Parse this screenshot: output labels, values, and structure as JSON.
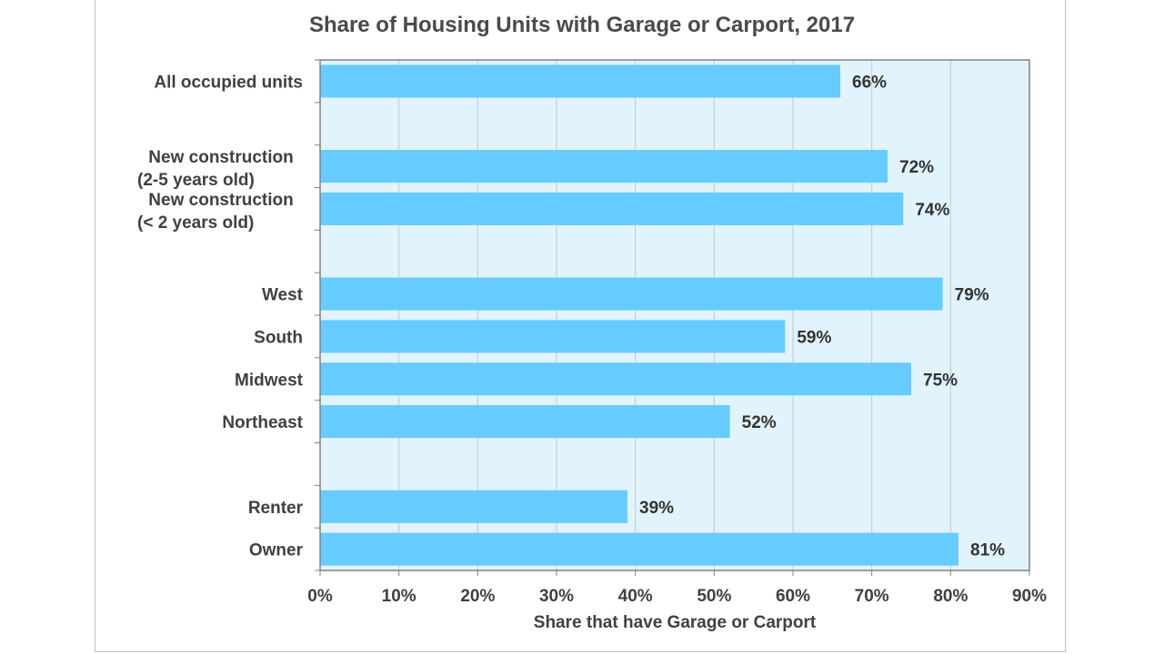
{
  "chart_data": {
    "type": "bar",
    "orientation": "horizontal",
    "title": "Share of Housing Units with Garage or Carport, 2017",
    "xlabel": "Share that have Garage or Carport",
    "ylabel": "",
    "xlim": [
      0,
      90
    ],
    "x_ticks": [
      "0%",
      "10%",
      "20%",
      "30%",
      "40%",
      "50%",
      "60%",
      "70%",
      "80%",
      "90%"
    ],
    "grid": true,
    "colors": {
      "bar": "#66ccff",
      "plot_bg": "#e1f3fc",
      "grid": "#c8c8c8",
      "axis": "#808080"
    },
    "categories": [
      {
        "lines": [
          "All occupied units"
        ],
        "value": 66,
        "label": "66%"
      },
      {
        "lines": [],
        "value": null,
        "label": ""
      },
      {
        "lines": [
          "New construction",
          "(2-5 years old)"
        ],
        "value": 72,
        "label": "72%"
      },
      {
        "lines": [
          "New construction",
          "(< 2 years old)"
        ],
        "value": 74,
        "label": "74%"
      },
      {
        "lines": [],
        "value": null,
        "label": ""
      },
      {
        "lines": [
          "West"
        ],
        "value": 79,
        "label": "79%"
      },
      {
        "lines": [
          "South"
        ],
        "value": 59,
        "label": "59%"
      },
      {
        "lines": [
          "Midwest"
        ],
        "value": 75,
        "label": "75%"
      },
      {
        "lines": [
          "Northeast"
        ],
        "value": 52,
        "label": "52%"
      },
      {
        "lines": [],
        "value": null,
        "label": ""
      },
      {
        "lines": [
          "Renter"
        ],
        "value": 39,
        "label": "39%"
      },
      {
        "lines": [
          "Owner"
        ],
        "value": 81,
        "label": "81%"
      }
    ]
  }
}
